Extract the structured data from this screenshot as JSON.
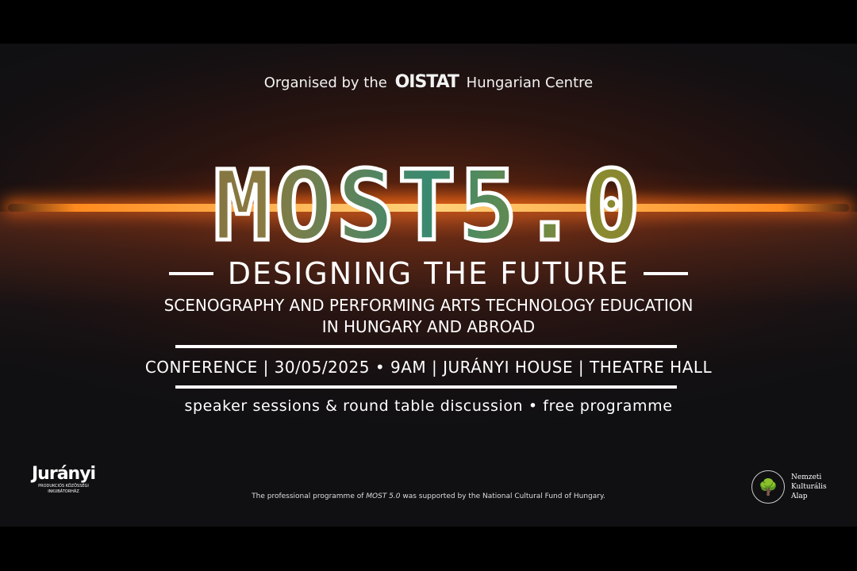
{
  "organiser": {
    "prefix": "Organised by the",
    "logo": "OISTAT",
    "suffix": "Hungarian Centre"
  },
  "title": "MOST5.0",
  "subtitle": "DESIGNING THE FUTURE",
  "description": [
    "SCENOGRAPHY AND PERFORMING ARTS TECHNOLOGY EDUCATION",
    "IN HUNGARY AND ABROAD"
  ],
  "event_info": "CONFERENCE | 30/05/2025 • 9AM | JURÁNYI HOUSE | THEATRE HALL",
  "tagline": "speaker sessions & round table discussion • free programme",
  "footer": {
    "before": "The professional programme of ",
    "italic": "MOST 5.0",
    "after": " was supported by the National Cultural Fund of Hungary."
  },
  "logos": {
    "juranyi": {
      "mark": "Jurányi",
      "sub": "PRODUKCIÓS KÖZÖSSÉGI INKUBÁTORHÁZ"
    },
    "nka": {
      "lines": [
        "Nemzeti",
        "Kulturális",
        "Alap"
      ]
    }
  },
  "colors": {
    "glow": "#ff8a1e",
    "text": "#ffffff",
    "background": "#141012"
  }
}
